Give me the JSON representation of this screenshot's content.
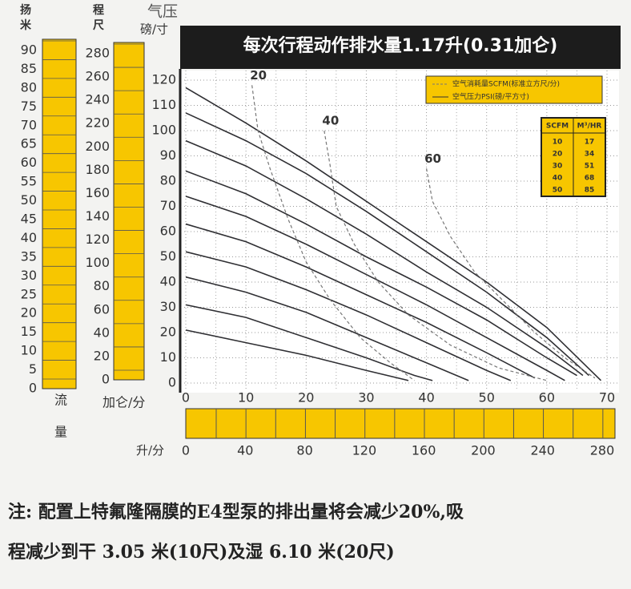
{
  "chart_data": {
    "type": "line",
    "header": "每次行程动作排水量1.17升(0.31加仑)",
    "ylabel": [
      "气压",
      "磅/寸"
    ],
    "xlabel": "加仑/分",
    "flow_label": [
      "流",
      "量"
    ],
    "xlim": [
      0,
      70
    ],
    "xticks": [
      0,
      10,
      20,
      30,
      40,
      50,
      60,
      70
    ],
    "ylim": [
      0,
      120
    ],
    "yticks": [
      0,
      10,
      20,
      30,
      40,
      50,
      60,
      70,
      80,
      90,
      100,
      110,
      120
    ],
    "meters_axis": {
      "title": "扬",
      "unit": "米",
      "lim": [
        0,
        90
      ],
      "ticks": [
        0,
        5,
        10,
        15,
        20,
        25,
        30,
        35,
        40,
        45,
        50,
        55,
        60,
        65,
        70,
        75,
        80,
        85,
        90
      ]
    },
    "feet_axis": {
      "title": "程",
      "unit": "尺",
      "lim": [
        0,
        280
      ],
      "ticks": [
        0,
        20,
        40,
        60,
        80,
        100,
        120,
        140,
        160,
        180,
        200,
        220,
        240,
        260,
        280
      ]
    },
    "liters_axis": {
      "label": "升/分",
      "lim": [
        0,
        280
      ],
      "ticks": [
        0,
        40,
        80,
        120,
        160,
        200,
        240,
        280
      ]
    },
    "legend": {
      "dashed": "空气消耗量SCFM(标准立方尺/分)",
      "solid": "空气压力PSI(磅/平方寸)"
    },
    "conversion_table": {
      "header": [
        "SCFM",
        "M³/HR"
      ],
      "rows": [
        [
          "10",
          "17"
        ],
        [
          "20",
          "34"
        ],
        [
          "30",
          "51"
        ],
        [
          "40",
          "68"
        ],
        [
          "50",
          "85"
        ]
      ]
    },
    "series": [
      {
        "style": "solid",
        "color": "#2f2f33",
        "x": [
          0,
          10,
          20,
          30,
          40,
          50,
          60,
          66,
          69
        ],
        "values": [
          117,
          103,
          88,
          72,
          56,
          40,
          22,
          8,
          1
        ]
      },
      {
        "style": "solid",
        "color": "#2f2f33",
        "x": [
          0,
          10,
          20,
          30,
          40,
          50,
          60,
          67
        ],
        "values": [
          107,
          96,
          83,
          68,
          52,
          36,
          18,
          3
        ]
      },
      {
        "style": "solid",
        "color": "#2f2f33",
        "x": [
          0,
          10,
          20,
          30,
          40,
          50,
          60,
          66
        ],
        "values": [
          96,
          86,
          73,
          59,
          44,
          30,
          14,
          3
        ]
      },
      {
        "style": "solid",
        "color": "#2f2f33",
        "x": [
          0,
          10,
          20,
          30,
          40,
          50,
          60,
          65
        ],
        "values": [
          84,
          75,
          63,
          50,
          38,
          25,
          10,
          3
        ]
      },
      {
        "style": "solid",
        "color": "#2f2f33",
        "x": [
          0,
          10,
          20,
          30,
          40,
          50,
          60,
          63
        ],
        "values": [
          74,
          66,
          55,
          43,
          31,
          18,
          5,
          1
        ]
      },
      {
        "style": "solid",
        "color": "#2f2f33",
        "x": [
          0,
          10,
          20,
          30,
          40,
          50,
          58
        ],
        "values": [
          63,
          56,
          46,
          35,
          24,
          12,
          2
        ]
      },
      {
        "style": "solid",
        "color": "#2f2f33",
        "x": [
          0,
          10,
          20,
          30,
          40,
          50,
          54
        ],
        "values": [
          52,
          46,
          37,
          27,
          16,
          5,
          1
        ]
      },
      {
        "style": "solid",
        "color": "#2f2f33",
        "x": [
          0,
          10,
          20,
          30,
          40,
          47
        ],
        "values": [
          42,
          36,
          28,
          18,
          8,
          1
        ]
      },
      {
        "style": "solid",
        "color": "#2f2f33",
        "x": [
          0,
          10,
          20,
          30,
          38,
          41
        ],
        "values": [
          31,
          26,
          18,
          10,
          3,
          1
        ]
      },
      {
        "style": "solid",
        "color": "#2f2f33",
        "x": [
          0,
          10,
          20,
          30,
          37
        ],
        "values": [
          21,
          16,
          11,
          5,
          1
        ]
      },
      {
        "name": "20",
        "style": "dashed",
        "color": "#777777",
        "x": [
          11,
          12,
          14,
          17,
          20,
          24,
          29,
          34,
          38
        ],
        "values": [
          118,
          100,
          85,
          65,
          48,
          33,
          18,
          8,
          1
        ]
      },
      {
        "name": "40",
        "style": "dashed",
        "color": "#777777",
        "x": [
          23,
          24,
          25,
          28,
          32,
          37,
          44,
          52,
          60
        ],
        "values": [
          100,
          86,
          70,
          55,
          40,
          27,
          15,
          6,
          1
        ]
      },
      {
        "name": "60",
        "style": "dashed",
        "color": "#777777",
        "x": [
          40,
          41,
          44,
          48,
          53,
          58,
          63,
          68
        ],
        "values": [
          85,
          72,
          58,
          44,
          32,
          20,
          10,
          2
        ]
      }
    ],
    "note": [
      "注: 配置上特氟隆隔膜的E4型泵的排出量将会减少20%,吸",
      "程减少到干 3.05 米(10尺)及湿 6.10 米(20尺)"
    ]
  }
}
